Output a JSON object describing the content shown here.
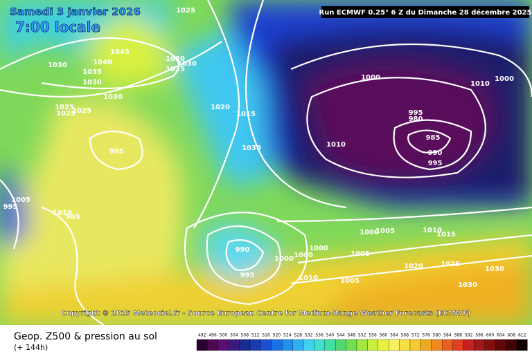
{
  "header": {
    "date": "Samedi 3 janvier 2026",
    "time": "7:00 locale",
    "run": "Run ECMWF 0.25° 6 Z du Dimanche 28 décembre 2025"
  },
  "copyright": "Copyright © 2025 Meteociel.fr - Source European Centre for Medium-Range Weather Forecasts (ECMWF)",
  "footer": {
    "title": "Geop. Z500 & pression au sol",
    "lead": "(+ 144h)"
  },
  "isobar_labels": [
    "1025",
    "1045",
    "1040",
    "1035",
    "1030",
    "1030",
    "1030",
    "1030",
    "1030",
    "1025",
    "1025",
    "1025",
    "1025",
    "1020",
    "1015",
    "1030",
    "995",
    "1000",
    "995",
    "980",
    "985",
    "990",
    "995",
    "1010",
    "1010",
    "1000",
    "995",
    "1005",
    "1010",
    "985",
    "990",
    "995",
    "1000",
    "1000",
    "1000",
    "1000",
    "1005",
    "1005",
    "1010",
    "1005",
    "1010",
    "1015",
    "1020",
    "1025",
    "1030",
    "1030"
  ],
  "scale_labels": [
    "492",
    "496",
    "500",
    "504",
    "508",
    "512",
    "516",
    "520",
    "524",
    "528",
    "532",
    "536",
    "540",
    "544",
    "548",
    "552",
    "556",
    "560",
    "564",
    "568",
    "572",
    "576",
    "580",
    "584",
    "588",
    "592",
    "596",
    "600",
    "604",
    "608",
    "612"
  ]
}
